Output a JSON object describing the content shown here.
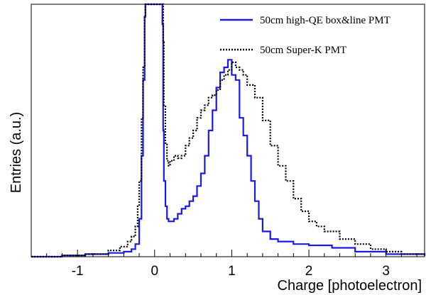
{
  "chart_data": {
    "type": "line",
    "xlabel": "Charge [photoelectron]",
    "ylabel": "Entries (a.u.)",
    "xlim": [
      -1.6,
      3.5
    ],
    "ylim": [
      0,
      1
    ],
    "x_ticks": [
      -1,
      0,
      1,
      2,
      3
    ],
    "x_tick_labels": [
      "-1",
      "0",
      "1",
      "2",
      "3"
    ],
    "legend_position": "top-right",
    "grid": false,
    "series": [
      {
        "name": "50cm high-QE box&line PMT",
        "color": "#1a1ae6",
        "style": "solid",
        "x": [
          -1.6,
          -1.2,
          -0.9,
          -0.6,
          -0.4,
          -0.3,
          -0.25,
          -0.2,
          -0.17,
          -0.15,
          -0.13,
          -0.12,
          -0.11,
          0.09,
          0.1,
          0.11,
          0.12,
          0.14,
          0.16,
          0.18,
          0.2,
          0.25,
          0.3,
          0.35,
          0.4,
          0.45,
          0.5,
          0.55,
          0.6,
          0.65,
          0.7,
          0.75,
          0.8,
          0.85,
          0.9,
          0.95,
          1.0,
          1.05,
          1.1,
          1.15,
          1.2,
          1.25,
          1.3,
          1.35,
          1.4,
          1.5,
          1.6,
          1.8,
          2.0,
          2.3,
          2.6,
          3.0,
          3.5
        ],
        "y": [
          0.0,
          0.005,
          0.01,
          0.015,
          0.02,
          0.03,
          0.05,
          0.15,
          0.4,
          0.7,
          0.95,
          1.0,
          1.0,
          1.0,
          0.92,
          0.5,
          0.3,
          0.2,
          0.15,
          0.14,
          0.14,
          0.15,
          0.17,
          0.19,
          0.2,
          0.22,
          0.24,
          0.28,
          0.33,
          0.4,
          0.5,
          0.58,
          0.67,
          0.73,
          0.75,
          0.78,
          0.72,
          0.7,
          0.55,
          0.48,
          0.4,
          0.3,
          0.22,
          0.15,
          0.1,
          0.07,
          0.06,
          0.05,
          0.045,
          0.035,
          0.02,
          0.01,
          0.003
        ]
      },
      {
        "name": "50cm Super-K PMT",
        "color": "#000000",
        "style": "dotted",
        "x": [
          -1.6,
          -1.2,
          -0.9,
          -0.6,
          -0.45,
          -0.35,
          -0.3,
          -0.25,
          -0.22,
          -0.2,
          -0.17,
          -0.15,
          -0.13,
          -0.12,
          0.1,
          0.11,
          0.12,
          0.14,
          0.16,
          0.18,
          0.2,
          0.25,
          0.3,
          0.35,
          0.4,
          0.45,
          0.5,
          0.55,
          0.6,
          0.65,
          0.7,
          0.75,
          0.8,
          0.85,
          0.9,
          0.95,
          1.0,
          1.05,
          1.1,
          1.15,
          1.2,
          1.3,
          1.4,
          1.5,
          1.6,
          1.7,
          1.8,
          1.9,
          2.0,
          2.1,
          2.2,
          2.3,
          2.4,
          2.6,
          2.8,
          3.0,
          3.2,
          3.5
        ],
        "y": [
          0.0,
          0.005,
          0.01,
          0.025,
          0.04,
          0.06,
          0.08,
          0.12,
          0.2,
          0.3,
          0.55,
          0.75,
          0.95,
          1.0,
          1.0,
          0.85,
          0.6,
          0.45,
          0.38,
          0.36,
          0.38,
          0.4,
          0.39,
          0.4,
          0.44,
          0.47,
          0.5,
          0.55,
          0.58,
          0.6,
          0.63,
          0.64,
          0.66,
          0.7,
          0.72,
          0.74,
          0.77,
          0.75,
          0.74,
          0.72,
          0.68,
          0.63,
          0.54,
          0.44,
          0.36,
          0.3,
          0.23,
          0.18,
          0.14,
          0.12,
          0.1,
          0.1,
          0.07,
          0.05,
          0.03,
          0.02,
          0.01,
          0.005
        ]
      }
    ]
  }
}
